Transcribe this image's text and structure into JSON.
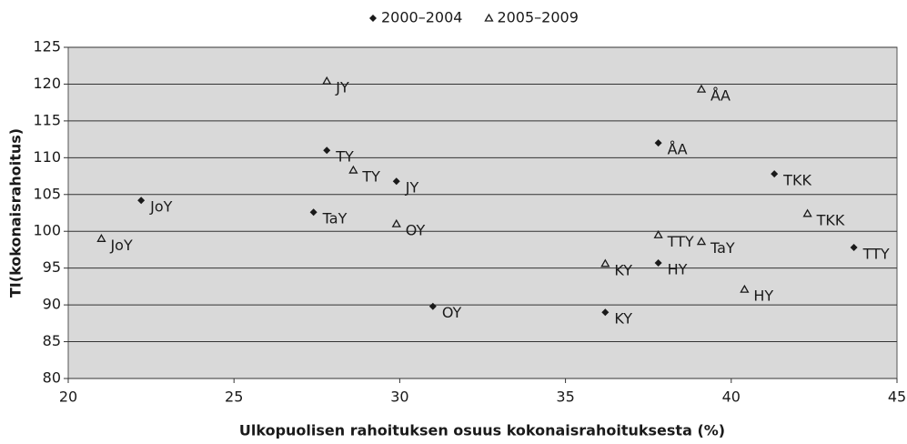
{
  "chart_data": {
    "type": "scatter",
    "xlabel": "Ulkopuolisen rahoituksen osuus kokonaisrahoituksesta (%)",
    "ylabel": "TI(kokonaisrahoitus)",
    "xlim": [
      20,
      45
    ],
    "xticks": [
      20,
      25,
      30,
      35,
      40,
      45
    ],
    "ylim": [
      80,
      125
    ],
    "yticks": [
      80,
      85,
      90,
      95,
      100,
      105,
      110,
      115,
      120,
      125
    ],
    "grid": true,
    "legend": "top",
    "series": [
      {
        "name": "2000–2004",
        "color": "#1a1a1a",
        "marker": "diamond",
        "labels": [
          "JoY",
          "TY",
          "TaY",
          "JY",
          "OY",
          "KY",
          "HY",
          "ÅA",
          "TKK",
          "TTY"
        ],
        "x": [
          22.2,
          27.8,
          27.4,
          29.9,
          31.0,
          36.2,
          37.8,
          37.8,
          41.3,
          43.7
        ],
        "values": [
          104.2,
          111,
          102.6,
          106.8,
          89.8,
          89,
          95.7,
          112,
          107.8,
          97.8
        ]
      },
      {
        "name": "2005–2009",
        "color": "#1a1a1a",
        "marker": "triangle",
        "labels": [
          "JoY",
          "JY",
          "TY",
          "OY",
          "KY",
          "TTY",
          "TaY",
          "ÅA",
          "HY",
          "TKK"
        ],
        "x": [
          21.0,
          27.8,
          28.6,
          29.9,
          36.2,
          37.8,
          39.1,
          39.1,
          40.4,
          42.3
        ],
        "values": [
          99,
          120.4,
          108.3,
          101,
          95.6,
          99.5,
          98.6,
          119.3,
          92.1,
          102.4
        ]
      }
    ]
  }
}
